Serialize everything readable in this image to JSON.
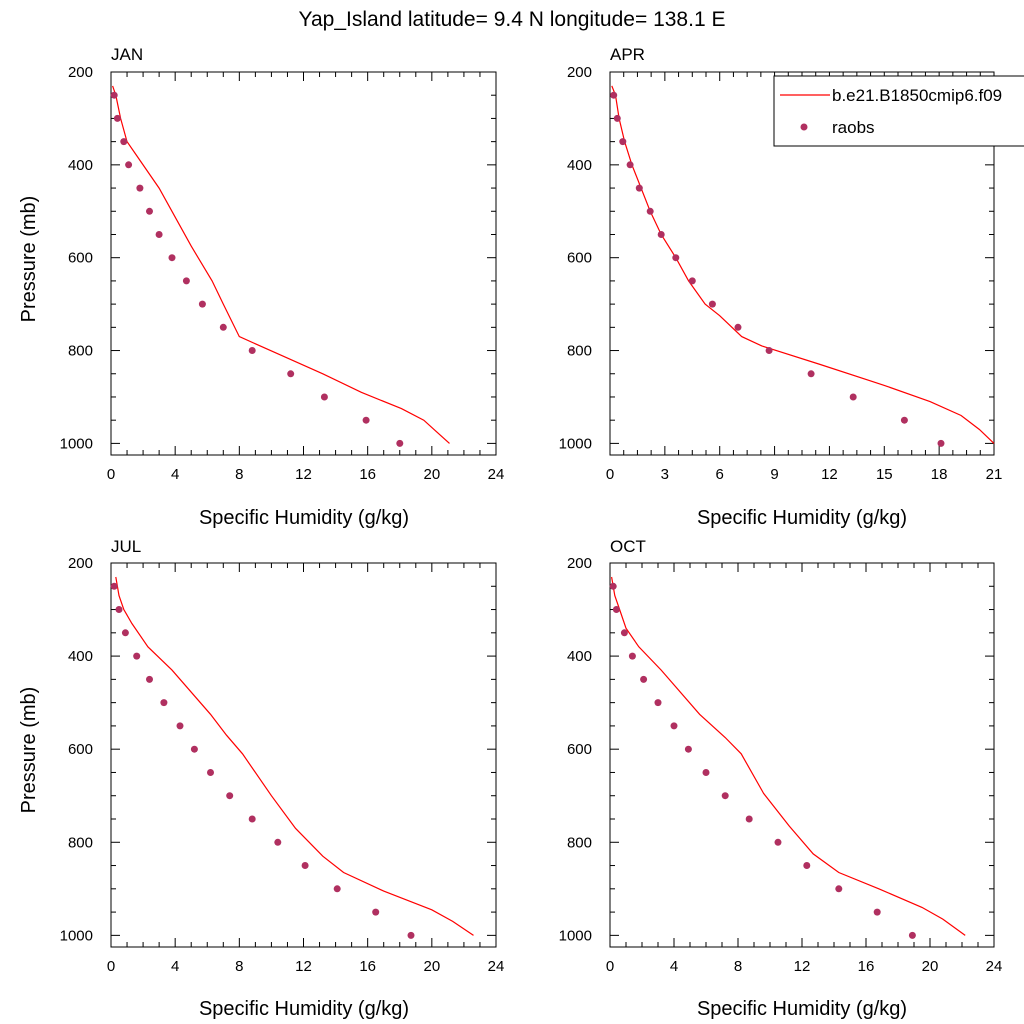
{
  "title": "Yap_Island  latitude= 9.4 N longitude= 138.1 E",
  "legend": {
    "model_label": "b.e21.B1850cmip6.f09",
    "obs_label": "raobs"
  },
  "colors": {
    "model_line": "#ff0000",
    "obs_marker": "#b03060"
  },
  "chart_data": [
    {
      "type": "line",
      "panel_label": "JAN",
      "xlabel": "Specific Humidity (g/kg)",
      "ylabel": "Pressure (mb)",
      "xlim": [
        0,
        24
      ],
      "xticks": [
        0,
        4,
        8,
        12,
        16,
        20,
        24
      ],
      "ylim": [
        200,
        1025
      ],
      "yticks": [
        200,
        400,
        600,
        800,
        1000
      ],
      "y_inverted": true,
      "series": [
        {
          "name": "b.e21.B1850cmip6.f09",
          "style": "line",
          "x": [
            0.1,
            0.3,
            0.6,
            1.0,
            1.6,
            3.0,
            4.2,
            5.0,
            6.3,
            7.0,
            8.0,
            10.6,
            13.2,
            15.6,
            18.1,
            19.5,
            20.3,
            21.1
          ],
          "y": [
            230,
            250,
            300,
            350,
            380,
            450,
            525,
            575,
            650,
            700,
            770,
            810,
            850,
            890,
            925,
            950,
            975,
            1000
          ]
        },
        {
          "name": "raobs",
          "style": "marker",
          "x": [
            0.2,
            0.4,
            0.8,
            1.1,
            1.8,
            2.4,
            3.0,
            3.8,
            4.7,
            5.7,
            7.0,
            8.8,
            11.2,
            13.3,
            15.9,
            18.0
          ],
          "y": [
            250,
            300,
            350,
            400,
            450,
            500,
            550,
            600,
            650,
            700,
            750,
            800,
            850,
            900,
            950,
            1000
          ]
        }
      ]
    },
    {
      "type": "line",
      "panel_label": "APR",
      "xlabel": "Specific Humidity (g/kg)",
      "ylabel": "",
      "xlim": [
        0,
        21
      ],
      "xticks": [
        0,
        3,
        6,
        9,
        12,
        15,
        18,
        21
      ],
      "ylim": [
        200,
        1025
      ],
      "yticks": [
        200,
        400,
        600,
        800,
        1000
      ],
      "y_inverted": true,
      "series": [
        {
          "name": "b.e21.B1850cmip6.f09",
          "style": "line",
          "x": [
            0.1,
            0.3,
            0.5,
            0.8,
            1.2,
            1.7,
            2.2,
            2.8,
            3.6,
            4.3,
            5.2,
            6.0,
            7.2,
            8.3,
            11.5,
            15.0,
            17.5,
            19.2,
            20.2,
            21.0
          ],
          "y": [
            230,
            250,
            300,
            350,
            400,
            450,
            500,
            550,
            600,
            650,
            700,
            725,
            770,
            790,
            830,
            875,
            910,
            940,
            970,
            1000
          ]
        },
        {
          "name": "raobs",
          "style": "marker",
          "x": [
            0.2,
            0.4,
            0.7,
            1.1,
            1.6,
            2.2,
            2.8,
            3.6,
            4.5,
            5.6,
            7.0,
            8.7,
            11.0,
            13.3,
            16.1,
            18.1
          ],
          "y": [
            250,
            300,
            350,
            400,
            450,
            500,
            550,
            600,
            650,
            700,
            750,
            800,
            850,
            900,
            950,
            1000
          ]
        }
      ]
    },
    {
      "type": "line",
      "panel_label": "JUL",
      "xlabel": "Specific Humidity (g/kg)",
      "ylabel": "Pressure (mb)",
      "xlim": [
        0,
        24
      ],
      "xticks": [
        0,
        4,
        8,
        12,
        16,
        20,
        24
      ],
      "ylim": [
        200,
        1025
      ],
      "yticks": [
        200,
        400,
        600,
        800,
        1000
      ],
      "y_inverted": true,
      "series": [
        {
          "name": "b.e21.B1850cmip6.f09",
          "style": "line",
          "x": [
            0.3,
            0.5,
            0.8,
            1.3,
            2.3,
            3.8,
            6.2,
            7.2,
            8.2,
            10.0,
            11.5,
            13.2,
            14.5,
            17.0,
            20.0,
            21.3,
            22.6
          ],
          "y": [
            230,
            270,
            300,
            330,
            380,
            430,
            525,
            570,
            610,
            700,
            770,
            830,
            865,
            905,
            945,
            970,
            1000
          ]
        },
        {
          "name": "raobs",
          "style": "marker",
          "x": [
            0.2,
            0.5,
            0.9,
            1.6,
            2.4,
            3.3,
            4.3,
            5.2,
            6.2,
            7.4,
            8.8,
            10.4,
            12.1,
            14.1,
            16.5,
            18.7
          ],
          "y": [
            250,
            300,
            350,
            400,
            450,
            500,
            550,
            600,
            650,
            700,
            750,
            800,
            850,
            900,
            950,
            1000
          ]
        }
      ]
    },
    {
      "type": "line",
      "panel_label": "OCT",
      "xlabel": "Specific Humidity (g/kg)",
      "ylabel": "",
      "xlim": [
        0,
        24
      ],
      "xticks": [
        0,
        4,
        8,
        12,
        16,
        20,
        24
      ],
      "ylim": [
        200,
        1025
      ],
      "yticks": [
        200,
        400,
        600,
        800,
        1000
      ],
      "y_inverted": true,
      "series": [
        {
          "name": "b.e21.B1850cmip6.f09",
          "style": "line",
          "x": [
            0.1,
            0.3,
            0.6,
            1.0,
            1.8,
            3.2,
            5.6,
            7.2,
            8.2,
            9.6,
            11.2,
            12.7,
            14.3,
            16.8,
            19.5,
            20.8,
            22.2
          ],
          "y": [
            230,
            270,
            300,
            340,
            380,
            430,
            525,
            575,
            610,
            695,
            765,
            825,
            865,
            900,
            940,
            965,
            1000
          ]
        },
        {
          "name": "raobs",
          "style": "marker",
          "x": [
            0.2,
            0.4,
            0.9,
            1.4,
            2.1,
            3.0,
            4.0,
            4.9,
            6.0,
            7.2,
            8.7,
            10.5,
            12.3,
            14.3,
            16.7,
            18.9
          ],
          "y": [
            250,
            300,
            350,
            400,
            450,
            500,
            550,
            600,
            650,
            700,
            750,
            800,
            850,
            900,
            950,
            1000
          ]
        }
      ]
    }
  ]
}
